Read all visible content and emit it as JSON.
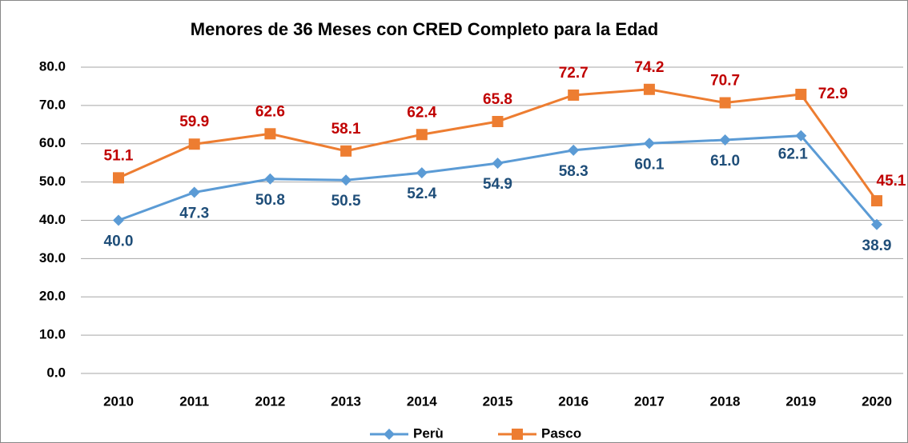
{
  "chart_data": {
    "type": "line",
    "title": "Menores de 36 Meses con CRED Completo para la Edad",
    "categories": [
      "2010",
      "2011",
      "2012",
      "2013",
      "2014",
      "2015",
      "2016",
      "2017",
      "2018",
      "2019",
      "2020"
    ],
    "series": [
      {
        "name": "Perù",
        "color": "#5b9bd5",
        "label_color": "#1f4e79",
        "marker": "diamond",
        "values": [
          40.0,
          47.3,
          50.8,
          50.5,
          52.4,
          54.9,
          58.3,
          60.1,
          61.0,
          62.1,
          38.9
        ],
        "value_labels": [
          "40.0",
          "47.3",
          "50.8",
          "50.5",
          "52.4",
          "54.9",
          "58.3",
          "60.1",
          "61.0",
          "62.1",
          "38.9"
        ]
      },
      {
        "name": "Pasco",
        "color": "#ed7d31",
        "label_color": "#c00000",
        "marker": "square",
        "values": [
          51.1,
          59.9,
          62.6,
          58.1,
          62.4,
          65.8,
          72.7,
          74.2,
          70.7,
          72.9,
          45.1
        ],
        "value_labels": [
          "51.1",
          "59.9",
          "62.6",
          "58.1",
          "62.4",
          "65.8",
          "72.7",
          "74.2",
          "70.7",
          "72.9",
          "45.1"
        ]
      }
    ],
    "ylim": [
      0,
      80
    ],
    "yticks": [
      {
        "value": 0,
        "label": "0.0"
      },
      {
        "value": 10,
        "label": "10.0"
      },
      {
        "value": 20,
        "label": "20.0"
      },
      {
        "value": 30,
        "label": "30.0"
      },
      {
        "value": 40,
        "label": "40.0"
      },
      {
        "value": 50,
        "label": "50.0"
      },
      {
        "value": 60,
        "label": "60.0"
      },
      {
        "value": 70,
        "label": "70.0"
      },
      {
        "value": 80,
        "label": "80.0"
      }
    ],
    "grid": true,
    "legend": "bottom"
  }
}
